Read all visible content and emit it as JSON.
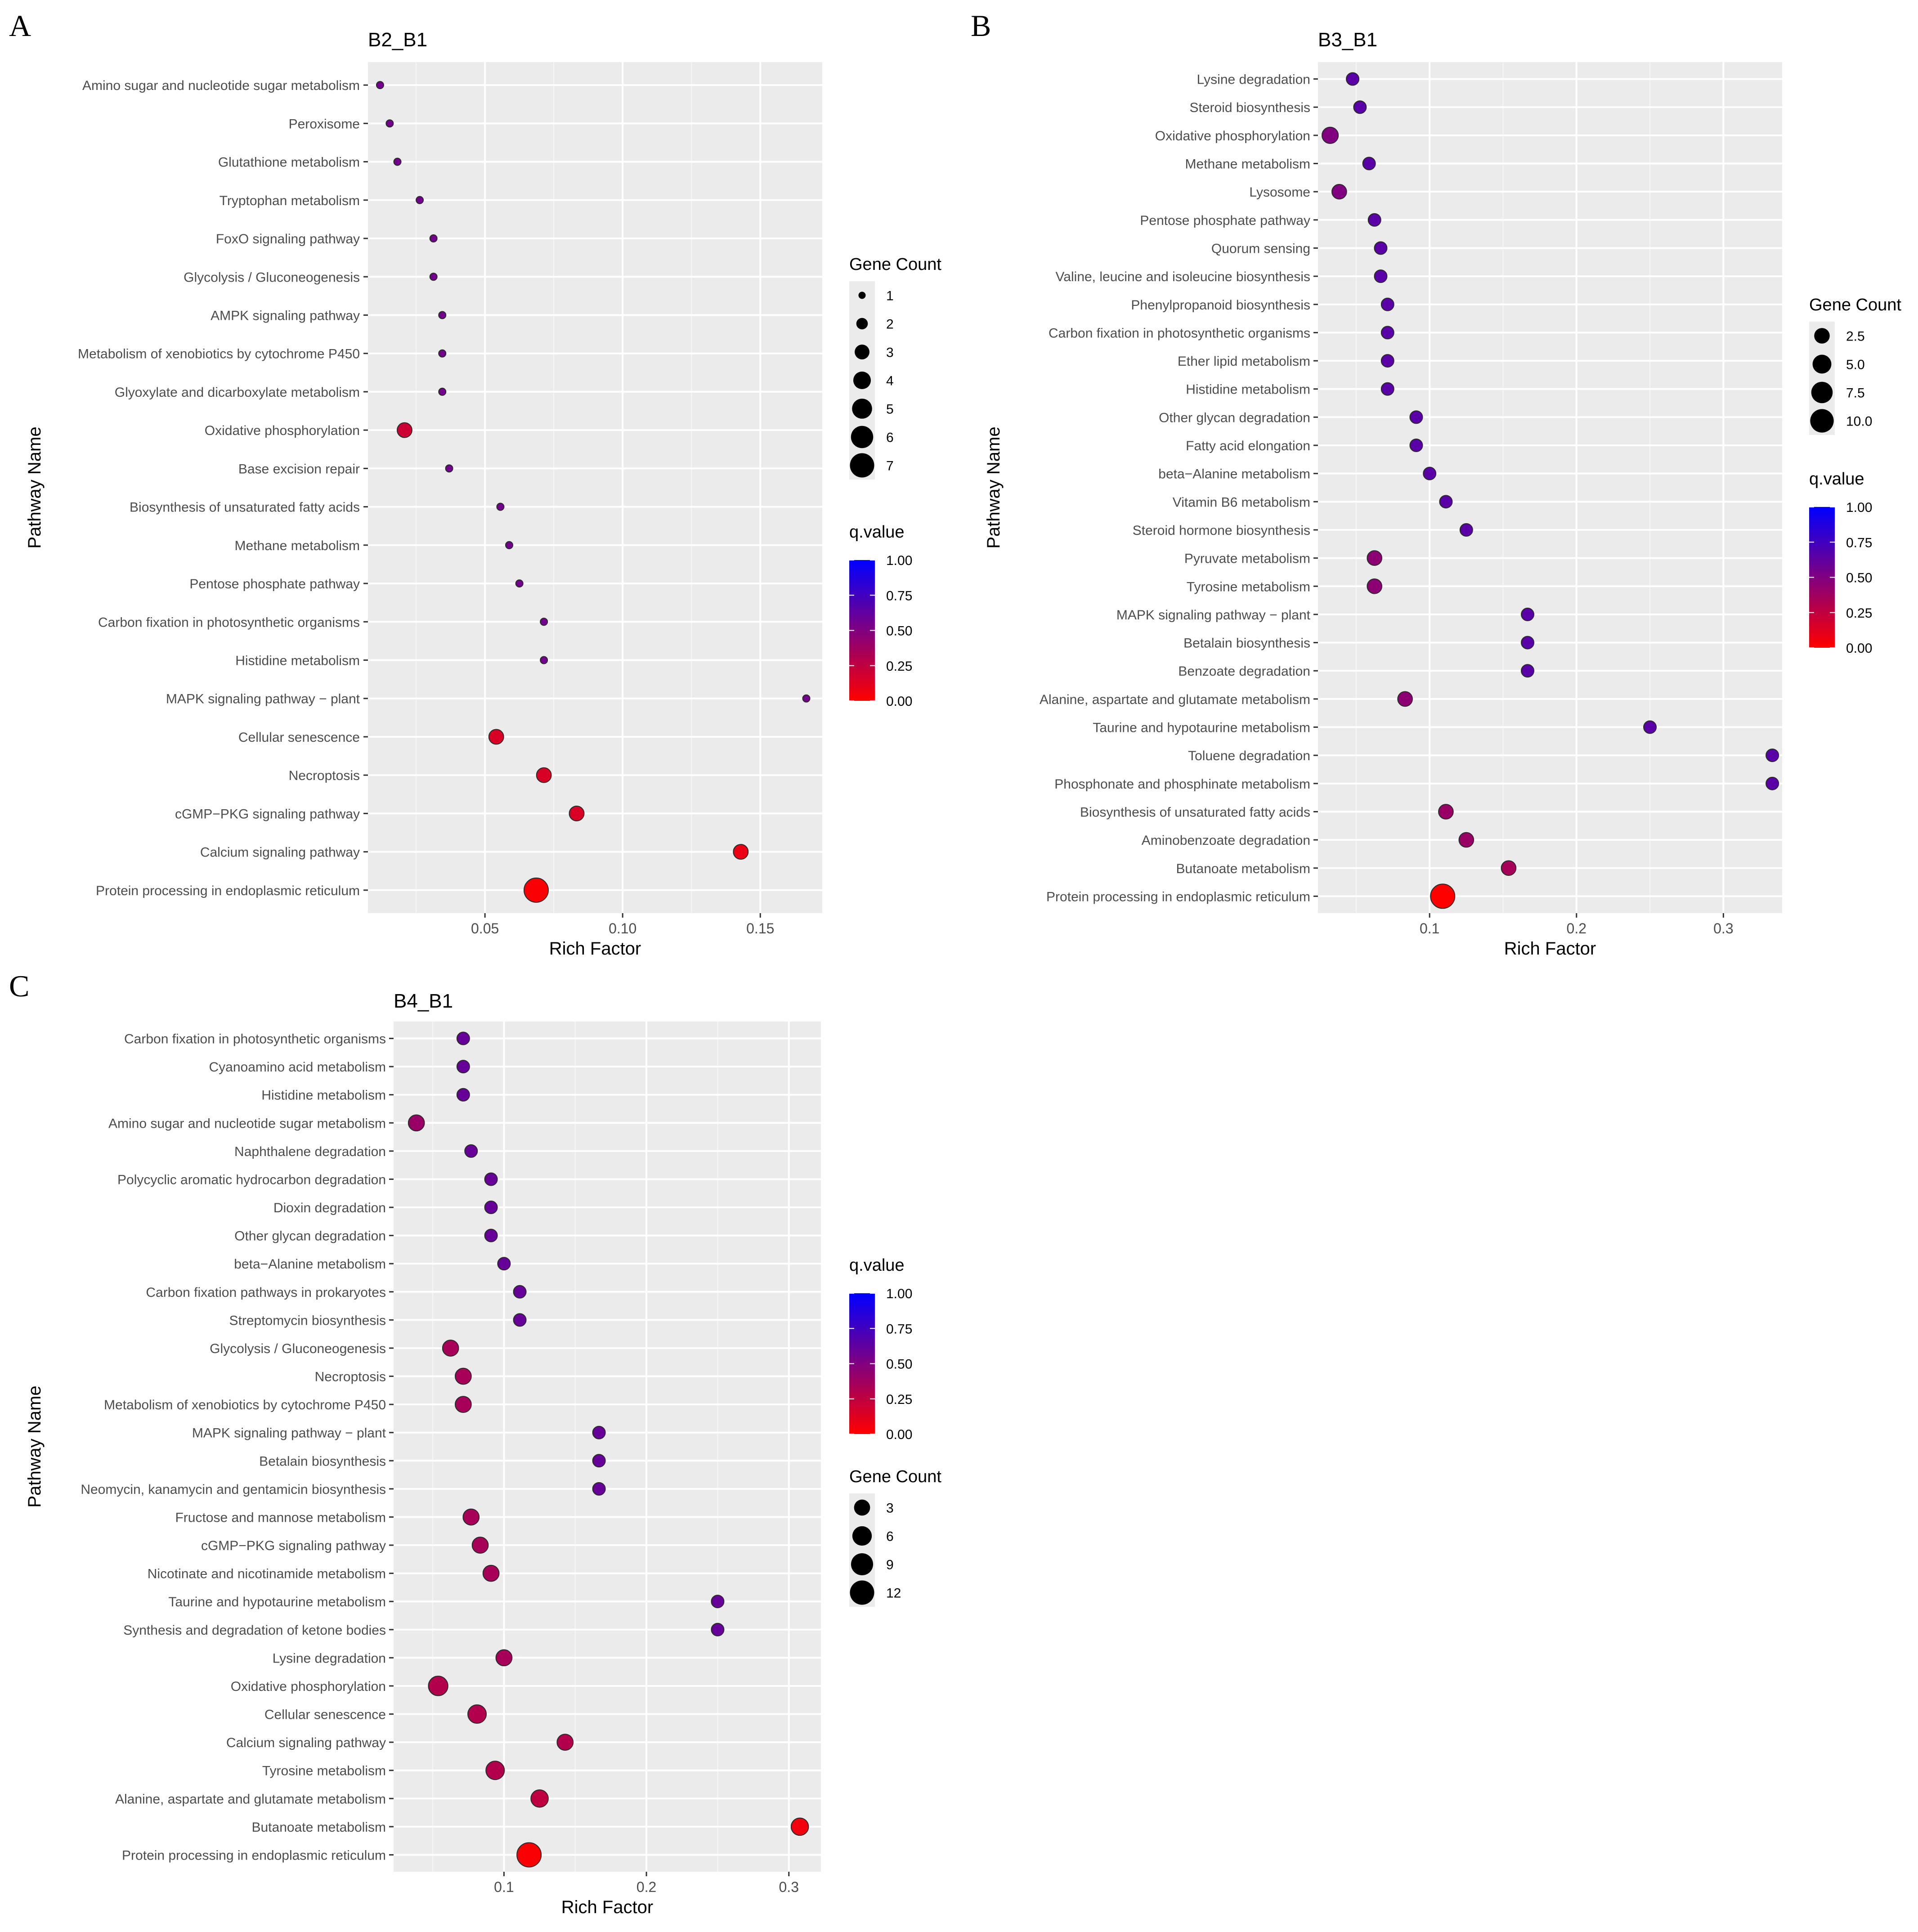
{
  "chart_data": [
    {
      "panel_label": "A",
      "type": "scatter",
      "title": "B2_B1",
      "xlabel": "Rich Factor",
      "ylabel": "Pathway Name",
      "xlim": [
        0.0075,
        0.1725
      ],
      "xticks": [
        0.05,
        0.1,
        0.15
      ],
      "xtick_labels": [
        "0.05",
        "0.10",
        "0.15"
      ],
      "grid": true,
      "categories": [
        "Amino sugar and nucleotide sugar metabolism",
        "Peroxisome",
        "Glutathione metabolism",
        "Tryptophan metabolism",
        "FoxO signaling pathway",
        "Glycolysis / Gluconeogenesis",
        "AMPK signaling pathway",
        "Metabolism of xenobiotics by cytochrome P450",
        "Glyoxylate and dicarboxylate metabolism",
        "Oxidative phosphorylation",
        "Base excision repair",
        "Biosynthesis of unsaturated fatty acids",
        "Methane metabolism",
        "Pentose phosphate pathway",
        "Carbon fixation in photosynthetic organisms",
        "Histidine metabolism",
        "MAPK signaling pathway − plant",
        "Cellular senescence",
        "Necroptosis",
        "cGMP−PKG signaling pathway",
        "Calcium signaling pathway",
        "Protein processing in endoplasmic reticulum"
      ],
      "rich_factor": [
        0.0119,
        0.0154,
        0.0182,
        0.0263,
        0.0313,
        0.0313,
        0.0345,
        0.0345,
        0.0345,
        0.0208,
        0.037,
        0.0556,
        0.0588,
        0.0625,
        0.0714,
        0.0714,
        0.1667,
        0.0541,
        0.0714,
        0.0833,
        0.1429,
        0.0686
      ],
      "gene_count": [
        1,
        1,
        1,
        1,
        1,
        1,
        1,
        1,
        1,
        3,
        1,
        1,
        1,
        1,
        1,
        1,
        1,
        3,
        3,
        3,
        3,
        7
      ],
      "q_value": [
        0.55,
        0.55,
        0.55,
        0.55,
        0.55,
        0.55,
        0.55,
        0.55,
        0.55,
        0.2,
        0.55,
        0.55,
        0.55,
        0.55,
        0.55,
        0.55,
        0.55,
        0.15,
        0.15,
        0.15,
        0.08,
        0.02
      ],
      "size_legend": {
        "title": "Gene Count",
        "values": [
          1,
          2,
          3,
          4,
          5,
          6,
          7
        ],
        "labels": [
          "1",
          "2",
          "3",
          "4",
          "5",
          "6",
          "7"
        ]
      },
      "color_legend": {
        "title": "q.value",
        "range": [
          0,
          1
        ],
        "labels": [
          "1.00",
          "0.75",
          "0.50",
          "0.25",
          "0.00"
        ]
      },
      "legend_order": [
        "size",
        "color"
      ],
      "legend_position": "right"
    },
    {
      "panel_label": "B",
      "type": "scatter",
      "title": "B3_B1",
      "xlabel": "Rich Factor",
      "ylabel": "Pathway Name",
      "xlim": [
        0.024,
        0.34
      ],
      "xticks": [
        0.1,
        0.2,
        0.3
      ],
      "xtick_labels": [
        "0.1",
        "0.2",
        "0.3"
      ],
      "grid": true,
      "categories": [
        "Lysine degradation",
        "Steroid biosynthesis",
        "Oxidative phosphorylation",
        "Methane metabolism",
        "Lysosome",
        "Pentose phosphate pathway",
        "Quorum sensing",
        "Valine, leucine and isoleucine biosynthesis",
        "Phenylpropanoid biosynthesis",
        "Carbon fixation in photosynthetic organisms",
        "Ether lipid metabolism",
        "Histidine metabolism",
        "Other glycan degradation",
        "Fatty acid elongation",
        "beta−Alanine metabolism",
        "Vitamin B6 metabolism",
        "Steroid hormone biosynthesis",
        "Pyruvate metabolism",
        "Tyrosine metabolism",
        "MAPK signaling pathway − plant",
        "Betalain biosynthesis",
        "Benzoate degradation",
        "Alanine, aspartate and glutamate metabolism",
        "Taurine and hypotaurine metabolism",
        "Toluene degradation",
        "Phosphonate and phosphinate metabolism",
        "Biosynthesis of unsaturated fatty acids",
        "Aminobenzoate degradation",
        "Butanoate metabolism",
        "Protein processing in endoplasmic reticulum"
      ],
      "rich_factor": [
        0.0476,
        0.0526,
        0.0323,
        0.0588,
        0.0385,
        0.0625,
        0.0667,
        0.0667,
        0.0714,
        0.0714,
        0.0714,
        0.0714,
        0.0909,
        0.0909,
        0.1,
        0.1111,
        0.125,
        0.0625,
        0.0625,
        0.1667,
        0.1667,
        0.1667,
        0.0833,
        0.25,
        0.3333,
        0.3333,
        0.1111,
        0.125,
        0.1538,
        0.1089
      ],
      "gene_count": [
        1,
        1,
        3,
        1,
        2,
        1,
        1,
        1,
        1,
        1,
        1,
        1,
        1,
        1,
        1,
        1,
        1,
        2,
        2,
        1,
        1,
        1,
        2,
        1,
        1,
        1,
        2,
        2,
        2,
        11
      ],
      "q_value": [
        0.65,
        0.65,
        0.5,
        0.65,
        0.5,
        0.65,
        0.65,
        0.65,
        0.65,
        0.65,
        0.65,
        0.65,
        0.65,
        0.65,
        0.65,
        0.65,
        0.65,
        0.45,
        0.45,
        0.65,
        0.65,
        0.65,
        0.45,
        0.65,
        0.65,
        0.65,
        0.4,
        0.4,
        0.35,
        0.0
      ],
      "size_legend": {
        "title": "Gene Count",
        "values": [
          2.5,
          5.0,
          7.5,
          10.0
        ],
        "labels": [
          "2.5",
          "5.0",
          "7.5",
          "10.0"
        ]
      },
      "color_legend": {
        "title": "q.value",
        "range": [
          0,
          1
        ],
        "labels": [
          "1.00",
          "0.75",
          "0.50",
          "0.25",
          "0.00"
        ]
      },
      "legend_order": [
        "size",
        "color"
      ],
      "legend_position": "right"
    },
    {
      "panel_label": "C",
      "type": "scatter",
      "title": "B4_B1",
      "xlabel": "Rich Factor",
      "ylabel": "Pathway Name",
      "xlim": [
        0.0225,
        0.3225
      ],
      "xticks": [
        0.1,
        0.2,
        0.3
      ],
      "xtick_labels": [
        "0.1",
        "0.2",
        "0.3"
      ],
      "grid": true,
      "categories": [
        "Carbon fixation in photosynthetic organisms",
        "Cyanoamino acid metabolism",
        "Histidine metabolism",
        "Amino sugar and nucleotide sugar metabolism",
        "Naphthalene degradation",
        "Polycyclic aromatic hydrocarbon degradation",
        "Dioxin degradation",
        "Other glycan degradation",
        "beta−Alanine metabolism",
        "Carbon fixation pathways in prokaryotes",
        "Streptomycin biosynthesis",
        "Glycolysis / Gluconeogenesis",
        "Necroptosis",
        "Metabolism of xenobiotics by cytochrome P450",
        "MAPK signaling pathway − plant",
        "Betalain biosynthesis",
        "Neomycin, kanamycin and gentamicin biosynthesis",
        "Fructose and mannose metabolism",
        "cGMP−PKG signaling pathway",
        "Nicotinate and nicotinamide metabolism",
        "Taurine and hypotaurine metabolism",
        "Synthesis and degradation of ketone bodies",
        "Lysine degradation",
        "Oxidative phosphorylation",
        "Cellular senescence",
        "Calcium signaling pathway",
        "Tyrosine metabolism",
        "Alanine, aspartate and glutamate metabolism",
        "Butanoate metabolism",
        "Protein processing in endoplasmic reticulum"
      ],
      "rich_factor": [
        0.0714,
        0.0714,
        0.0714,
        0.0385,
        0.0769,
        0.0909,
        0.0909,
        0.0909,
        0.1,
        0.1111,
        0.1111,
        0.0625,
        0.0714,
        0.0714,
        0.1667,
        0.1667,
        0.1667,
        0.0769,
        0.0833,
        0.0909,
        0.25,
        0.25,
        0.1,
        0.0538,
        0.0811,
        0.1429,
        0.0938,
        0.125,
        0.3077,
        0.1176
      ],
      "gene_count": [
        1,
        1,
        1,
        3,
        1,
        1,
        1,
        1,
        1,
        1,
        1,
        3,
        3,
        3,
        1,
        1,
        1,
        3,
        3,
        3,
        1,
        1,
        3,
        6,
        5,
        3,
        5,
        4,
        4,
        12
      ],
      "q_value": [
        0.6,
        0.6,
        0.6,
        0.4,
        0.6,
        0.6,
        0.6,
        0.6,
        0.6,
        0.6,
        0.6,
        0.35,
        0.35,
        0.35,
        0.6,
        0.6,
        0.6,
        0.35,
        0.35,
        0.35,
        0.6,
        0.6,
        0.35,
        0.3,
        0.3,
        0.3,
        0.3,
        0.25,
        0.05,
        0.02
      ],
      "size_legend": {
        "title": "Gene Count",
        "values": [
          3,
          6,
          9,
          12
        ],
        "labels": [
          "3",
          "6",
          "9",
          "12"
        ]
      },
      "color_legend": {
        "title": "q.value",
        "range": [
          0,
          1
        ],
        "labels": [
          "1.00",
          "0.75",
          "0.50",
          "0.25",
          "0.00"
        ]
      },
      "legend_order": [
        "color",
        "size"
      ],
      "legend_position": "right"
    }
  ]
}
